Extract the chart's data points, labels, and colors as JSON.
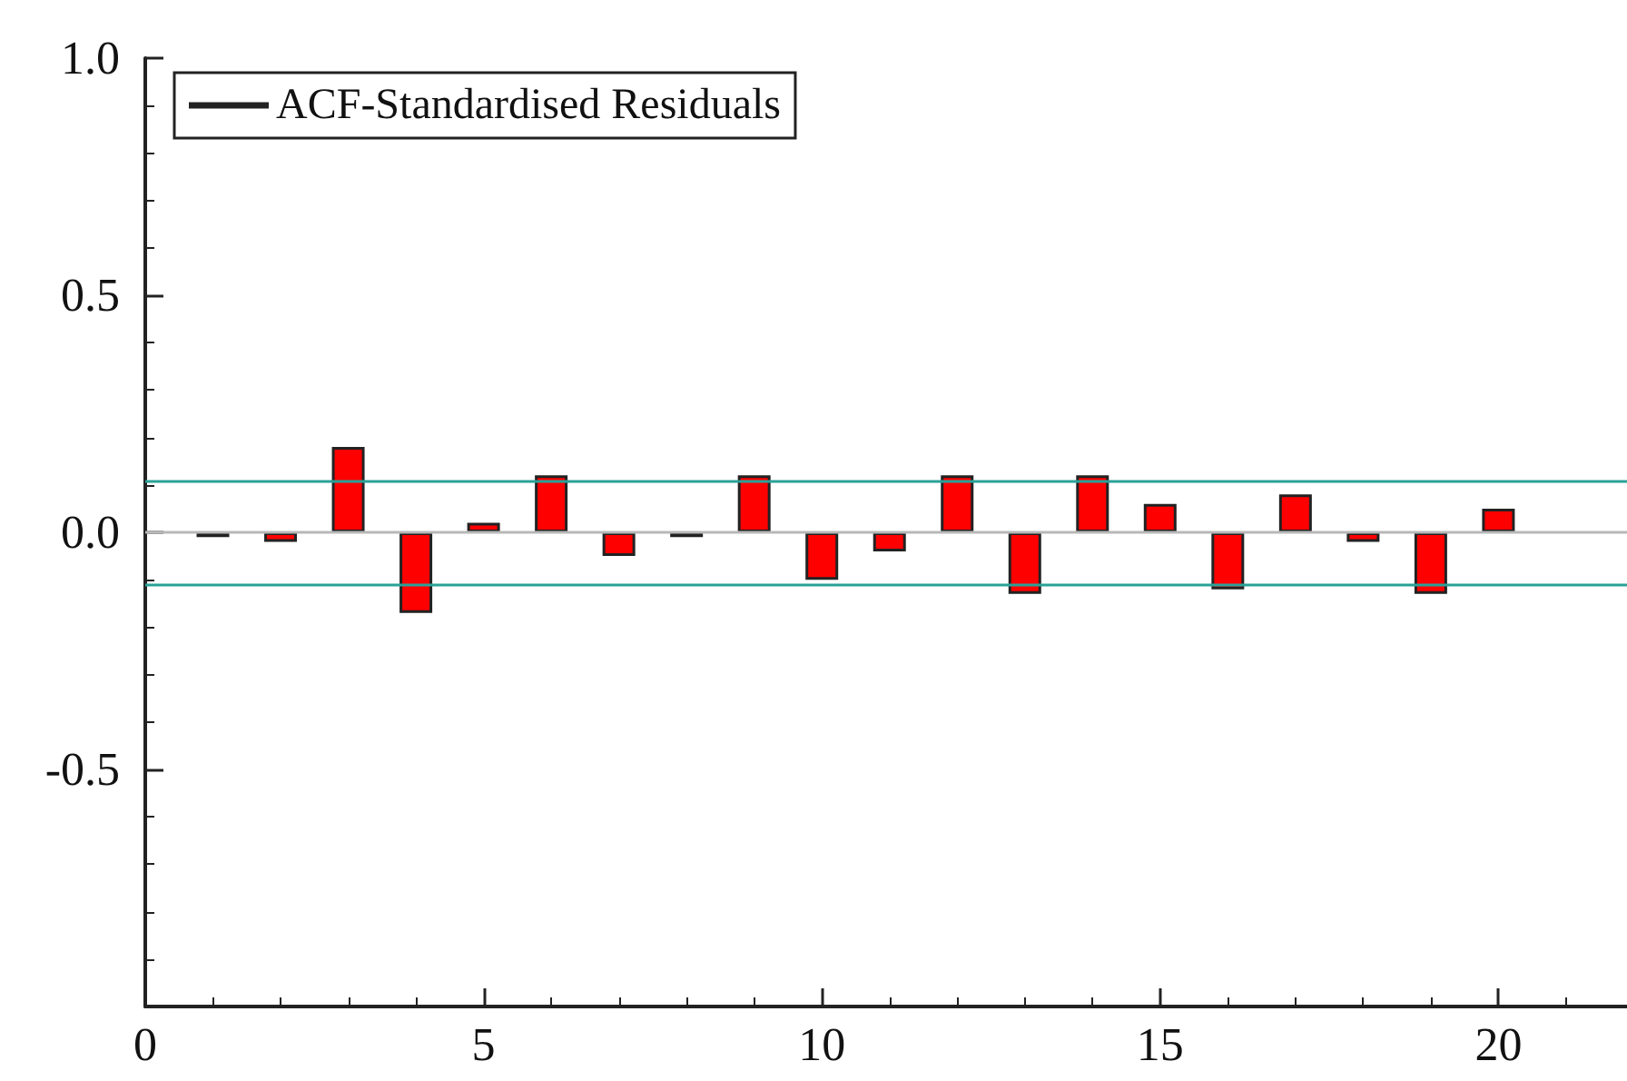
{
  "chart_data": {
    "type": "bar",
    "x": [
      1,
      2,
      3,
      4,
      5,
      6,
      7,
      8,
      9,
      10,
      11,
      12,
      13,
      14,
      15,
      16,
      17,
      18,
      19,
      20
    ],
    "series": [
      {
        "name": "ACF-Standardised Residuals",
        "color": "#ff0000",
        "values": [
          -0.01,
          -0.02,
          0.18,
          -0.17,
          0.02,
          0.12,
          -0.05,
          -0.01,
          0.12,
          -0.1,
          -0.04,
          0.12,
          -0.13,
          0.12,
          0.06,
          -0.12,
          0.08,
          -0.02,
          -0.13,
          0.05
        ]
      }
    ],
    "xlim": [
      0,
      21.9
    ],
    "xticks": [
      0,
      5,
      10,
      15,
      20
    ],
    "ylim": [
      -1,
      1
    ],
    "yticks": [
      {
        "value": -0.5,
        "label": "-0.5"
      },
      {
        "value": 0,
        "label": "0.0"
      },
      {
        "value": 0.5,
        "label": "0.5"
      },
      {
        "value": 1,
        "label": "1.0"
      }
    ],
    "ref_lines": [
      {
        "axis": "y",
        "value": 0.11,
        "color": "#2aa198"
      },
      {
        "axis": "y",
        "value": -0.11,
        "color": "#2aa198"
      },
      {
        "axis": "y",
        "value": 0,
        "color": "#b8b8b8"
      }
    ],
    "grid": false,
    "legend": "top left"
  }
}
